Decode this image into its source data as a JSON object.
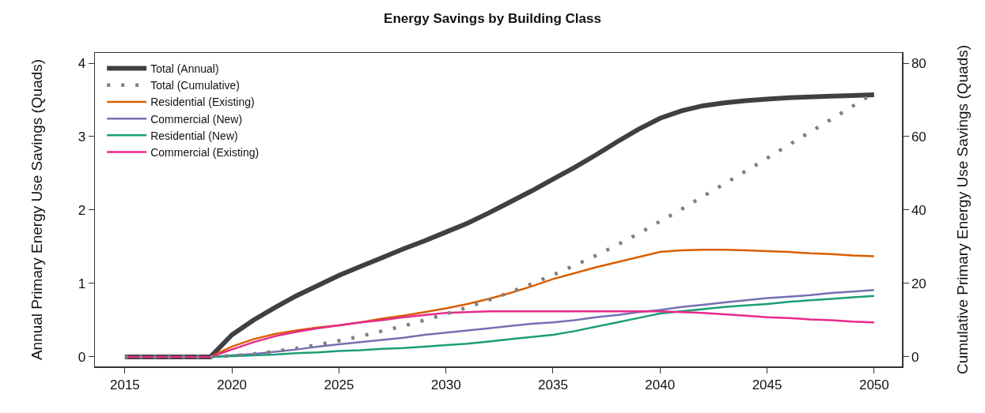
{
  "chart_data": {
    "type": "line",
    "title": "Energy Savings by Building Class",
    "ylabel": "Annual Primary Energy Use Savings (Quads)",
    "y2label": "Cumulative Primary Energy Use Savings (Quads)",
    "x": [
      2015,
      2016,
      2017,
      2018,
      2019,
      2020,
      2021,
      2022,
      2023,
      2024,
      2025,
      2026,
      2027,
      2028,
      2029,
      2030,
      2031,
      2032,
      2033,
      2034,
      2035,
      2036,
      2037,
      2038,
      2039,
      2040,
      2041,
      2042,
      2043,
      2044,
      2045,
      2046,
      2047,
      2048,
      2049,
      2050
    ],
    "series": [
      {
        "name": "Total (Annual)",
        "color": "#404040",
        "line_style": "solid",
        "values": [
          0,
          0,
          0,
          0,
          0,
          0.3,
          0.5,
          0.67,
          0.83,
          0.97,
          1.11,
          1.23,
          1.35,
          1.47,
          1.58,
          1.7,
          1.82,
          1.96,
          2.11,
          2.26,
          2.42,
          2.58,
          2.75,
          2.93,
          3.1,
          3.25,
          3.35,
          3.42,
          3.46,
          3.49,
          3.51,
          3.53,
          3.54,
          3.55,
          3.56,
          3.57
        ]
      },
      {
        "name": "Total (Cumulative)",
        "color": "#808080",
        "line_style": "dotted",
        "axis": "y2",
        "values": [
          0,
          0,
          0,
          0,
          0,
          0.3,
          0.8,
          1.5,
          2.3,
          3.3,
          4.4,
          5.6,
          7.0,
          8.4,
          10.0,
          11.7,
          13.5,
          15.5,
          17.6,
          19.9,
          22.3,
          24.9,
          27.6,
          30.5,
          33.6,
          36.9,
          40.2,
          43.7,
          47.1,
          50.6,
          54.1,
          57.7,
          61.2,
          64.7,
          68.3,
          71.9
        ]
      },
      {
        "name": "Residential (Existing)",
        "color": "#d95f02",
        "line_style": "solid",
        "values": [
          null,
          null,
          null,
          null,
          0,
          0.14,
          0.24,
          0.31,
          0.36,
          0.4,
          0.43,
          0.47,
          0.52,
          0.56,
          0.61,
          0.66,
          0.72,
          0.79,
          0.87,
          0.96,
          1.06,
          1.14,
          1.22,
          1.29,
          1.36,
          1.43,
          1.45,
          1.46,
          1.46,
          1.45,
          1.44,
          1.43,
          1.41,
          1.4,
          1.38,
          1.37
        ]
      },
      {
        "name": "Commercial (New)",
        "color": "#7570b3",
        "line_style": "solid",
        "values": [
          null,
          null,
          null,
          null,
          0,
          0.02,
          0.04,
          0.07,
          0.1,
          0.14,
          0.17,
          0.2,
          0.23,
          0.26,
          0.3,
          0.33,
          0.36,
          0.39,
          0.42,
          0.45,
          0.47,
          0.5,
          0.54,
          0.57,
          0.61,
          0.64,
          0.68,
          0.71,
          0.74,
          0.77,
          0.8,
          0.82,
          0.84,
          0.87,
          0.89,
          0.91
        ]
      },
      {
        "name": "Residential (New)",
        "color": "#1b9e77",
        "line_style": "solid",
        "values": [
          null,
          null,
          null,
          null,
          0,
          0.01,
          0.02,
          0.03,
          0.05,
          0.06,
          0.08,
          0.09,
          0.11,
          0.12,
          0.14,
          0.16,
          0.18,
          0.21,
          0.24,
          0.27,
          0.3,
          0.35,
          0.41,
          0.47,
          0.53,
          0.59,
          0.62,
          0.65,
          0.68,
          0.7,
          0.72,
          0.75,
          0.77,
          0.79,
          0.81,
          0.83
        ]
      },
      {
        "name": "Commercial (Existing)",
        "color": "#e7298a",
        "line_style": "solid",
        "values": [
          0,
          0,
          0,
          0,
          0,
          0.1,
          0.2,
          0.28,
          0.34,
          0.39,
          0.43,
          0.47,
          0.5,
          0.54,
          0.57,
          0.6,
          0.61,
          0.62,
          0.62,
          0.62,
          0.62,
          0.62,
          0.62,
          0.62,
          0.62,
          0.62,
          0.61,
          0.6,
          0.58,
          0.56,
          0.54,
          0.53,
          0.51,
          0.5,
          0.48,
          0.47
        ]
      }
    ],
    "xlim": [
      2013.6,
      2051.3
    ],
    "xticks": [
      2015,
      2020,
      2025,
      2030,
      2035,
      2040,
      2045,
      2050
    ],
    "ylim": [
      -0.13,
      4.14
    ],
    "yticks": [
      0,
      1,
      2,
      3,
      4
    ],
    "y2lim": [
      -2.6,
      82.8
    ],
    "y2ticks": [
      0,
      20,
      40,
      60,
      80
    ],
    "grid": false,
    "legend": "top left",
    "marker": "none"
  }
}
